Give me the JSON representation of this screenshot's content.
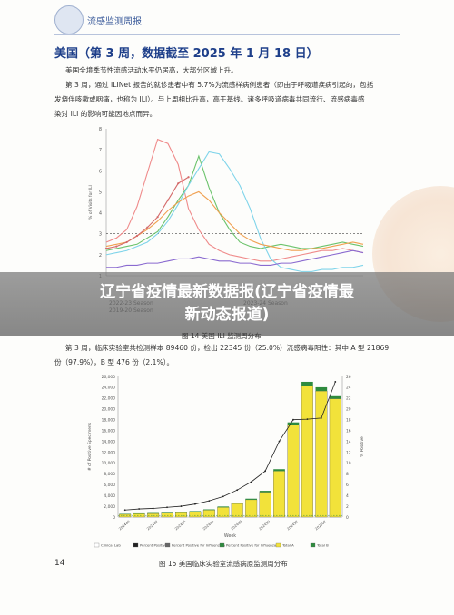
{
  "header": {
    "org_label": "流感监测周报",
    "logo_icon": "cdc-logo-icon"
  },
  "title": "美国（第 3 周，数据截至 2025 年 1 月 18 日）",
  "paragraphs": [
    "美国全境季节性流感活动水平仍居高，大部分区域上升。",
    "第 3 周，通过 ILINet 报告的就诊患者中有 5.7%为流感样病例患者（即由于呼吸道疾病引起的，包括",
    "发烧伴咳嗽或咽痛，也称为 ILI）。与上周相比升高，高于基线。诸多呼吸道病毒共同流行、流感病毒感",
    "染对 ILI 的影响可能因地点而异。"
  ],
  "banner": {
    "line1": "辽宁省疫情最新数据报(辽宁省疫情最",
    "line2": "新动态报道)"
  },
  "chart1_caption": "图 14   美国 ILI 监测周分布",
  "legend1": [
    "2022-23 Season",
    "2023-24 Season",
    "2019-20 Season"
  ],
  "para2": [
    "第 3 周，临床实验室共检测样本 89460 份，检出 22345 份（25.0%）流感病毒阳性：其中 A 型 21869",
    "份（97.9%），B 型 476 份（2.1%）。"
  ],
  "chart2_caption": "图 15   美国临床实验室流感病原监测周分布",
  "page_number": "14",
  "chart_data": [
    {
      "type": "line",
      "ylabel": "% of Visits for ILI",
      "yticks": [
        "1",
        "2",
        "3",
        "4",
        "5",
        "6",
        "7",
        "8"
      ],
      "ylim": [
        1,
        8
      ],
      "baseline": 3.0,
      "series": [
        {
          "name": "2022-23 Season",
          "color": "#ef8a8a",
          "values": [
            2.6,
            2.8,
            3.2,
            4.3,
            5.9,
            7.5,
            7.3,
            6.3,
            4.2,
            3.2,
            2.5,
            2.2,
            2.0,
            1.9,
            1.8,
            1.7,
            1.7,
            1.8,
            1.9,
            2.0,
            2.1,
            2.2,
            2.2,
            2.3,
            2.2,
            2.1
          ]
        },
        {
          "name": "2023-24 Season",
          "color": "#6cc36c",
          "values": [
            2.2,
            2.3,
            2.4,
            2.5,
            2.8,
            3.1,
            3.8,
            4.6,
            5.3,
            6.7,
            5.2,
            4.0,
            3.2,
            2.6,
            2.4,
            2.3,
            2.4,
            2.5,
            2.4,
            2.3,
            2.3,
            2.4,
            2.5,
            2.6,
            2.5,
            2.4
          ]
        },
        {
          "name": "2019-20 Season",
          "color": "#7fd4ea",
          "values": [
            2.0,
            2.1,
            2.2,
            2.4,
            2.6,
            3.0,
            3.6,
            4.4,
            5.3,
            6.1,
            6.9,
            6.8,
            6.1,
            5.3,
            4.2,
            2.8,
            1.8,
            1.4,
            1.3,
            1.2,
            1.2,
            1.3,
            1.3,
            1.4,
            1.4,
            1.5
          ]
        },
        {
          "name": "",
          "color": "#f0a050",
          "values": [
            2.4,
            2.5,
            2.6,
            2.9,
            3.2,
            3.6,
            4.1,
            4.5,
            4.8,
            5.0,
            4.6,
            4.0,
            3.5,
            3.0,
            2.7,
            2.5,
            2.4,
            2.3,
            2.2,
            2.2,
            2.3,
            2.3,
            2.4,
            2.5,
            2.6,
            2.5
          ]
        },
        {
          "name": "",
          "color": "#8a6ad0",
          "values": [
            1.4,
            1.4,
            1.5,
            1.5,
            1.6,
            1.6,
            1.7,
            1.8,
            1.8,
            1.9,
            1.8,
            1.7,
            1.7,
            1.6,
            1.6,
            1.5,
            1.5,
            1.6,
            1.6,
            1.7,
            1.8,
            1.9,
            2.0,
            2.1,
            2.2,
            2.1
          ]
        },
        {
          "name": "",
          "color": "#d46a6a",
          "values": [
            2.3,
            2.4,
            2.6,
            2.9,
            3.3,
            3.8,
            4.6,
            5.4,
            5.7,
            null,
            null,
            null,
            null,
            null,
            null,
            null,
            null,
            null,
            null,
            null,
            null,
            null,
            null,
            null,
            null,
            null
          ]
        }
      ]
    },
    {
      "type": "bar",
      "xlabel": "Week",
      "ylabel": "# of Positive Specimens",
      "y2label": "% Positive",
      "yticks": [
        "0",
        "2,000",
        "4,000",
        "6,000",
        "8,000",
        "10,000",
        "12,000",
        "14,000",
        "16,000",
        "18,000",
        "20,000",
        "22,000",
        "24,000",
        "26,000"
      ],
      "y2ticks": [
        "0",
        "2",
        "4",
        "6",
        "8",
        "10",
        "12",
        "14",
        "16",
        "18",
        "20",
        "22",
        "24",
        "26"
      ],
      "ylim": [
        0,
        26000
      ],
      "categories": [
        "202440",
        "202441",
        "202442",
        "202443",
        "202444",
        "202445",
        "202446",
        "202447",
        "202448",
        "202449",
        "202450",
        "202451",
        "202452",
        "202501",
        "202502",
        "202503"
      ],
      "xticks": [
        "202440",
        "202442",
        "202444",
        "202446",
        "202448",
        "202450",
        "202452",
        "202502"
      ],
      "series": [
        {
          "name": "Total A",
          "color": "#f2e23a",
          "values": [
            500,
            600,
            650,
            700,
            800,
            1000,
            1300,
            1800,
            2500,
            3200,
            4600,
            8500,
            17000,
            24200,
            23300,
            21869
          ]
        },
        {
          "name": "Total B",
          "color": "#2e8b3e",
          "values": [
            80,
            80,
            90,
            90,
            100,
            100,
            120,
            150,
            180,
            200,
            250,
            350,
            500,
            800,
            700,
            476
          ]
        },
        {
          "name": "Percent Positive",
          "color": "#222222",
          "values": [
            1.3,
            1.5,
            1.6,
            1.8,
            2.0,
            2.4,
            3.0,
            3.8,
            5.0,
            6.5,
            8.5,
            14.0,
            18.0,
            18.1,
            18.3,
            25.0
          ]
        }
      ],
      "legend": [
        "Clinical Lab",
        "Percent Positive",
        "Percent Positive for Influenza A",
        "Percent Positive for Influenza B",
        "Total A",
        "Total B"
      ]
    }
  ]
}
